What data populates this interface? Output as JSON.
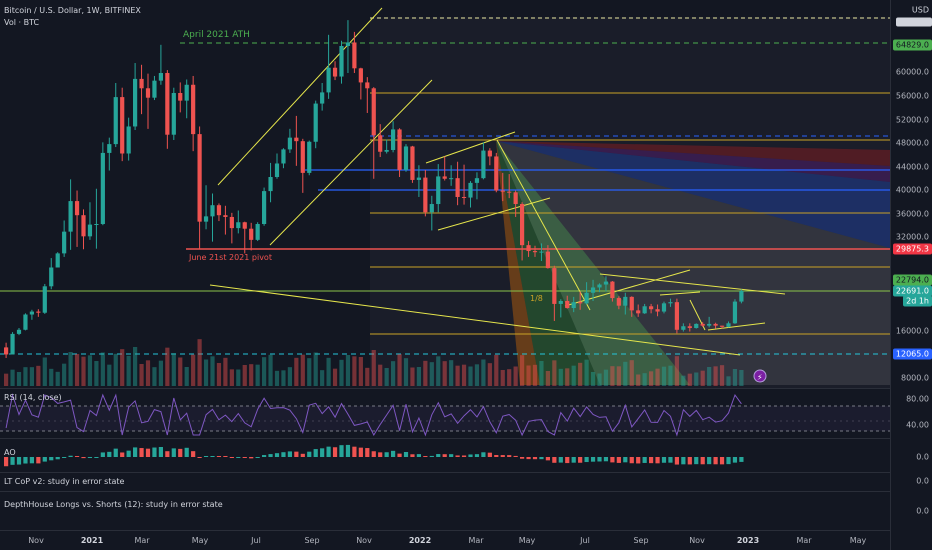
{
  "header": {
    "symbol_line": "Bitcoin / U.S. Dollar, 1W, BITFINEX",
    "volume_line": "Vol · BTC",
    "currency": "USD"
  },
  "annotations": {
    "ath": "April 2021 ATH",
    "pivot": "June 21st 2021 pivot",
    "fib_small": "1/8"
  },
  "price_axis": {
    "ticks": [
      "60000.0",
      "56000.0",
      "52000.0",
      "48000.0",
      "44000.0",
      "40000.0",
      "36000.0",
      "32000.0",
      "16000.0",
      "8000.0"
    ],
    "tags": [
      {
        "value": "64829.0",
        "bg": "#4caf50",
        "fg": "#131722"
      },
      {
        "value": "29875.3",
        "bg": "#f23645",
        "fg": "#ffffff"
      },
      {
        "value": "22794.0",
        "bg": "#4caf50",
        "fg": "#131722"
      },
      {
        "value": "22691.0",
        "bg": "#26a69a",
        "fg": "#ffffff"
      },
      {
        "value": "2d 1h",
        "bg": "#26a69a",
        "fg": "#ffffff"
      },
      {
        "value": "12065.0",
        "bg": "#2962ff",
        "fg": "#ffffff"
      }
    ]
  },
  "indicators": {
    "rsi": {
      "label": "RSI (14, close)",
      "ticks": [
        "80.00",
        "40.00"
      ]
    },
    "ao": {
      "label": "AO",
      "tick": "0.0"
    },
    "lt_cop": {
      "label": "LT CoP v2: study in error state",
      "tick": "0.0"
    },
    "depthhouse": {
      "label": "DepthHouse Longs vs. Shorts (12): study in error state",
      "tick": "0.0"
    }
  },
  "time_axis": [
    "Nov",
    "2021",
    "Mar",
    "May",
    "Jul",
    "Sep",
    "Nov",
    "2022",
    "Mar",
    "May",
    "Jul",
    "Sep",
    "Nov",
    "2023",
    "Mar",
    "May"
  ],
  "colors": {
    "up": "#26a69a",
    "down": "#ef5350",
    "background": "#131722",
    "grid": "#2a2e39"
  },
  "chart_data": {
    "type": "candlestick",
    "title": "Bitcoin / U.S. Dollar, 1W, BITFINEX",
    "ylabel": "USD",
    "ylim": [
      8000,
      68000
    ],
    "candles": [
      [
        13100,
        13900,
        11300,
        11900
      ],
      [
        11900,
        15700,
        11900,
        15400
      ],
      [
        15400,
        16400,
        15200,
        16100
      ],
      [
        16100,
        18900,
        16000,
        18700
      ],
      [
        18700,
        19500,
        17800,
        19200
      ],
      [
        19200,
        19600,
        18300,
        19000
      ],
      [
        19000,
        23900,
        18800,
        23500
      ],
      [
        23500,
        28500,
        23000,
        26700
      ],
      [
        26700,
        29500,
        27000,
        29300
      ],
      [
        29300,
        34900,
        28700,
        33000
      ],
      [
        33000,
        41900,
        29900,
        38200
      ],
      [
        38200,
        40000,
        30400,
        35800
      ],
      [
        35800,
        36800,
        30000,
        32200
      ],
      [
        32200,
        38000,
        31600,
        34200
      ],
      [
        34200,
        40300,
        30100,
        34300
      ],
      [
        34300,
        48200,
        34100,
        46400
      ],
      [
        46400,
        49000,
        43400,
        47900
      ],
      [
        47900,
        58300,
        47400,
        55900
      ],
      [
        55900,
        57500,
        45000,
        46300
      ],
      [
        46300,
        52400,
        45100,
        50900
      ],
      [
        50900,
        61700,
        50300,
        59000
      ],
      [
        59000,
        61400,
        53000,
        57400
      ],
      [
        57400,
        59900,
        50500,
        55800
      ],
      [
        55800,
        59500,
        55400,
        58700
      ],
      [
        58700,
        64800,
        58000,
        60000
      ],
      [
        60000,
        60500,
        47100,
        49500
      ],
      [
        49500,
        57500,
        48600,
        56600
      ],
      [
        56600,
        58400,
        53300,
        55300
      ],
      [
        55300,
        58900,
        52300,
        58000
      ],
      [
        58000,
        59500,
        46700,
        49600
      ],
      [
        49600,
        50900,
        30000,
        34700
      ],
      [
        34700,
        40900,
        33400,
        35600
      ],
      [
        35600,
        39500,
        31300,
        37500
      ],
      [
        37500,
        37800,
        34800,
        35800
      ],
      [
        35800,
        37400,
        32500,
        35500
      ],
      [
        35500,
        36200,
        31000,
        33600
      ],
      [
        33600,
        36600,
        32700,
        34600
      ],
      [
        34600,
        34700,
        29300,
        33500
      ],
      [
        33500,
        34500,
        29800,
        31600
      ],
      [
        31600,
        34600,
        31400,
        34300
      ],
      [
        34300,
        40500,
        34000,
        39900
      ],
      [
        39900,
        44700,
        38000,
        42300
      ],
      [
        42300,
        46300,
        42000,
        44600
      ],
      [
        44600,
        47200,
        43800,
        47000
      ],
      [
        47000,
        50500,
        46400,
        49000
      ],
      [
        49000,
        52700,
        44200,
        48400
      ],
      [
        48400,
        48800,
        39600,
        43000
      ],
      [
        43000,
        48500,
        42600,
        48300
      ],
      [
        48300,
        55300,
        47200,
        54800
      ],
      [
        54800,
        58300,
        53600,
        56700
      ],
      [
        56700,
        66500,
        55600,
        60900
      ],
      [
        60900,
        62000,
        58800,
        59400
      ],
      [
        59400,
        65500,
        58200,
        64600
      ],
      [
        64600,
        69000,
        60000,
        65200
      ],
      [
        65200,
        67000,
        60000,
        60800
      ],
      [
        60800,
        60900,
        55500,
        58400
      ],
      [
        58400,
        59300,
        53200,
        57400
      ],
      [
        57400,
        57600,
        42000,
        49400
      ],
      [
        49400,
        51300,
        45700,
        46600
      ],
      [
        46600,
        48700,
        46300,
        46900
      ],
      [
        46900,
        51800,
        46500,
        50400
      ],
      [
        50400,
        50600,
        42300,
        43500
      ],
      [
        43500,
        47900,
        43200,
        47500
      ],
      [
        47500,
        47600,
        41300,
        41800
      ],
      [
        41800,
        44300,
        38900,
        42200
      ],
      [
        42200,
        43500,
        35600,
        36300
      ],
      [
        36300,
        39100,
        33200,
        37700
      ],
      [
        37700,
        44500,
        36300,
        42400
      ],
      [
        42400,
        45800,
        41700,
        42000
      ],
      [
        42000,
        44300,
        40800,
        42100
      ],
      [
        42100,
        44900,
        37500,
        38900
      ],
      [
        38900,
        44400,
        37600,
        38800
      ],
      [
        38800,
        41600,
        37100,
        41300
      ],
      [
        41300,
        43100,
        38500,
        42100
      ],
      [
        42100,
        48200,
        41900,
        46800
      ],
      [
        46800,
        47200,
        44300,
        45800
      ],
      [
        45800,
        46400,
        39700,
        40000
      ],
      [
        40000,
        43000,
        38200,
        39800
      ],
      [
        39800,
        42800,
        38700,
        39700
      ],
      [
        39700,
        40000,
        35500,
        37700
      ],
      [
        37700,
        38000,
        27900,
        30700
      ],
      [
        30700,
        31400,
        28700,
        29700
      ],
      [
        29700,
        30600,
        28700,
        29500
      ],
      [
        29500,
        31000,
        28000,
        29600
      ],
      [
        29600,
        30700,
        26500,
        26600
      ],
      [
        26600,
        27000,
        17600,
        20500
      ],
      [
        20500,
        21300,
        18200,
        21000
      ],
      [
        21000,
        21900,
        19700,
        19800
      ],
      [
        19800,
        21700,
        19100,
        20800
      ],
      [
        20800,
        22600,
        19500,
        20600
      ],
      [
        20600,
        24200,
        20400,
        22400
      ],
      [
        22400,
        24600,
        21000,
        23300
      ],
      [
        23300,
        24000,
        22500,
        23800
      ],
      [
        23800,
        25200,
        22600,
        24300
      ],
      [
        24300,
        24400,
        20900,
        21500
      ],
      [
        21500,
        21800,
        19600,
        20200
      ],
      [
        20200,
        22400,
        18700,
        21700
      ],
      [
        21700,
        21800,
        18300,
        19400
      ],
      [
        19400,
        20400,
        18300,
        18900
      ],
      [
        18900,
        20500,
        18800,
        20100
      ],
      [
        20100,
        20500,
        18900,
        19600
      ],
      [
        19600,
        20400,
        18400,
        19200
      ],
      [
        19200,
        20900,
        18900,
        20600
      ],
      [
        20600,
        21400,
        20000,
        20800
      ],
      [
        20800,
        21400,
        15500,
        16100
      ],
      [
        16100,
        17200,
        15800,
        16700
      ],
      [
        16700,
        17200,
        15800,
        16400
      ],
      [
        16400,
        17200,
        16300,
        17100
      ],
      [
        17100,
        17400,
        16600,
        16800
      ],
      [
        16800,
        18300,
        16500,
        17100
      ],
      [
        17100,
        17300,
        16300,
        16800
      ],
      [
        16800,
        16800,
        16300,
        16600
      ],
      [
        16600,
        17500,
        16500,
        17200
      ],
      [
        17200,
        21300,
        17100,
        20900
      ],
      [
        20900,
        23000,
        20600,
        22700
      ]
    ]
  }
}
